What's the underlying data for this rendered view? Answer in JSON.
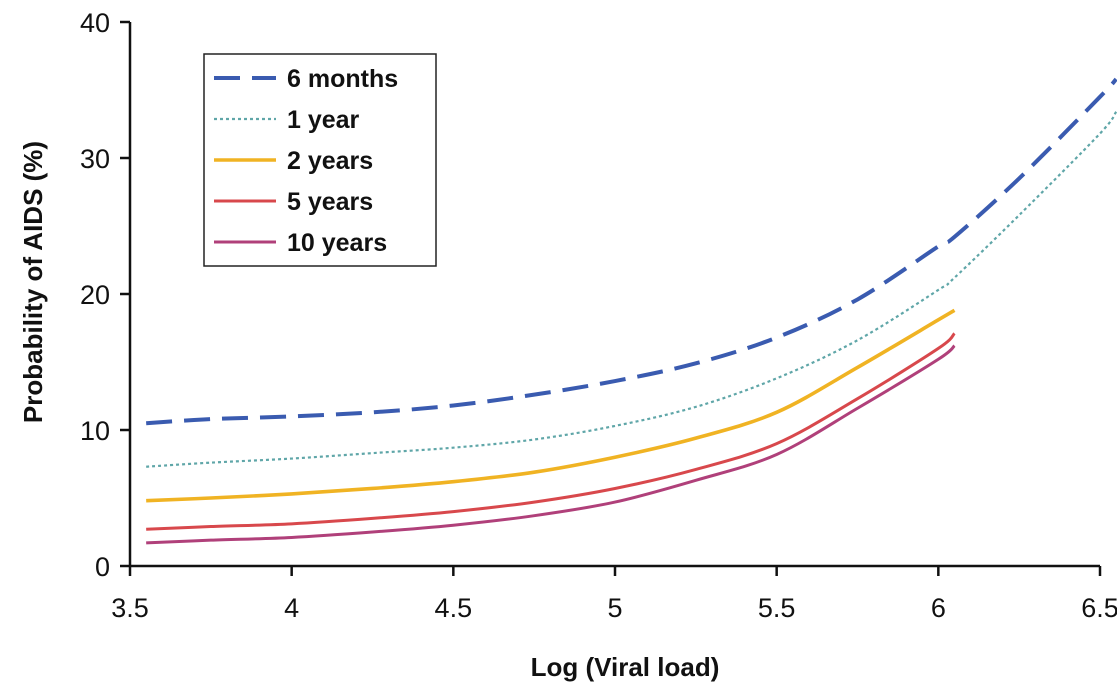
{
  "chart_data": {
    "type": "line",
    "title": "",
    "xlabel": "Log (Viral load)",
    "ylabel": "Probability of AIDS (%)",
    "xlim": [
      3.5,
      6.5
    ],
    "ylim": [
      0,
      40
    ],
    "xticks": [
      "3.5",
      "4",
      "4.5",
      "5",
      "5.5",
      "6",
      "6.5"
    ],
    "yticks": [
      "0",
      "10",
      "20",
      "30",
      "40"
    ],
    "grid": false,
    "legend_position": "top-left",
    "x": [
      3.55,
      3.75,
      4.0,
      4.25,
      4.5,
      4.75,
      5.0,
      5.25,
      5.5,
      5.75,
      6.0,
      6.05,
      6.25,
      6.5,
      6.55
    ],
    "series": [
      {
        "name": "6 months",
        "color": "#3a5bb0",
        "dash": "long-dash",
        "values": [
          10.5,
          10.8,
          11.0,
          11.3,
          11.8,
          12.6,
          13.6,
          14.9,
          16.8,
          19.6,
          23.5,
          24.2,
          28.5,
          34.5,
          35.8
        ]
      },
      {
        "name": "1 year",
        "color": "#5fa6a8",
        "dash": "dotted",
        "values": [
          7.3,
          7.6,
          7.9,
          8.3,
          8.7,
          9.3,
          10.3,
          11.7,
          13.8,
          16.6,
          20.3,
          21.2,
          25.8,
          31.8,
          33.4
        ]
      },
      {
        "name": "2 years",
        "color": "#f0b323",
        "dash": "solid",
        "values": [
          4.8,
          5.0,
          5.3,
          5.7,
          6.2,
          6.9,
          8.0,
          9.4,
          11.3,
          14.6,
          18.1,
          18.8,
          null,
          null,
          null
        ]
      },
      {
        "name": "5 years",
        "color": "#d8484c",
        "dash": "solid",
        "values": [
          2.7,
          2.9,
          3.1,
          3.5,
          4.0,
          4.7,
          5.7,
          7.1,
          9.0,
          12.3,
          16.0,
          17.1,
          null,
          null,
          null
        ]
      },
      {
        "name": "10 years",
        "color": "#b0407a",
        "dash": "solid",
        "values": [
          1.7,
          1.9,
          2.1,
          2.5,
          3.0,
          3.7,
          4.7,
          6.3,
          8.2,
          11.6,
          15.2,
          16.2,
          null,
          null,
          null
        ]
      }
    ]
  }
}
